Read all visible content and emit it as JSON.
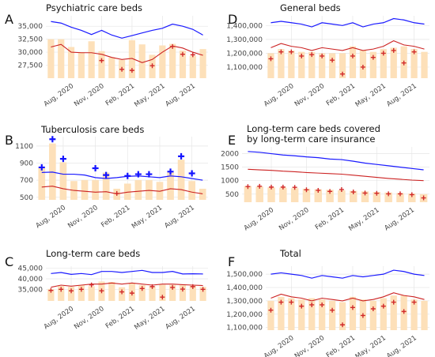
{
  "chart_data": [
    {
      "id": "A",
      "type": "bar",
      "letter": "A",
      "title": [
        "Psychiatric care beds"
      ],
      "xticks": [
        "Aug, 2020",
        "Nov, 2020",
        "Feb, 2021",
        "May, 2021",
        "Aug, 2021"
      ],
      "yticks": [
        27500,
        30000,
        32500,
        35000
      ],
      "ytick_labels": [
        "27,500",
        "30,000",
        "32,500",
        "35,000"
      ],
      "ylim": [
        25000,
        37000
      ],
      "bars": [
        32500,
        32500,
        31000,
        30000,
        32100,
        30200,
        29000,
        28500,
        32300,
        31500,
        29500,
        31300,
        31600,
        30300,
        29300,
        30600
      ],
      "blue_line": [
        35900,
        35600,
        34800,
        34200,
        33400,
        34200,
        33300,
        32700,
        33200,
        33700,
        34200,
        34600,
        35400,
        35000,
        34400,
        33300
      ],
      "red_line": [
        31000,
        31500,
        30000,
        29900,
        29900,
        29600,
        29000,
        28600,
        28800,
        28000,
        28600,
        30000,
        31200,
        30800,
        30000,
        29400
      ],
      "markers_red": [
        null,
        null,
        null,
        null,
        null,
        28400,
        null,
        26700,
        26500,
        null,
        27400,
        null,
        31100,
        29600,
        29500,
        null
      ],
      "markers_blue": []
    },
    {
      "id": "B",
      "type": "bar",
      "letter": "B",
      "title": [
        "Tuberculosis care beds"
      ],
      "xticks": [
        "Aug, 2020",
        "Nov, 2020",
        "Feb, 2021",
        "May, 2021",
        "Aug, 2021"
      ],
      "yticks": [
        500,
        700,
        900,
        1100
      ],
      "ytick_labels": [
        "500",
        "700",
        "900",
        "1100"
      ],
      "ylim": [
        470,
        1210
      ],
      "bars": [
        840,
        1130,
        910,
        690,
        700,
        700,
        790,
        600,
        660,
        700,
        700,
        680,
        790,
        940,
        690,
        600
      ],
      "blue_line": [
        790,
        795,
        770,
        770,
        760,
        730,
        720,
        730,
        745,
        750,
        740,
        730,
        750,
        740,
        720,
        700
      ],
      "red_line": [
        620,
        630,
        600,
        580,
        570,
        560,
        565,
        540,
        560,
        570,
        580,
        570,
        600,
        590,
        560,
        540
      ],
      "markers_red": [
        null,
        null,
        null,
        null,
        null,
        null,
        null,
        545,
        null,
        null,
        null,
        null,
        null,
        null,
        null,
        null
      ],
      "markers_blue": [
        850,
        1180,
        950,
        null,
        null,
        840,
        760,
        null,
        750,
        770,
        770,
        null,
        800,
        980,
        780,
        null
      ]
    },
    {
      "id": "C",
      "type": "bar",
      "letter": "C",
      "title": [
        "Long-term care beds"
      ],
      "xticks": [
        "Aug, 2020",
        "Nov, 2020",
        "Feb, 2021",
        "May, 2021",
        "Aug, 2021"
      ],
      "yticks": [
        35000,
        40000,
        45000
      ],
      "ytick_labels": [
        "35,000",
        "40,000",
        "45,000"
      ],
      "ylim": [
        29500,
        46000
      ],
      "bars": [
        35200,
        36600,
        36200,
        37000,
        36500,
        38700,
        38500,
        36000,
        38000,
        37000,
        36500,
        37200,
        37100,
        37000,
        36700,
        36200
      ],
      "blue_line": [
        42500,
        43000,
        42100,
        42500,
        42000,
        43500,
        43500,
        43000,
        43500,
        44000,
        43000,
        43000,
        43500,
        42300,
        42400,
        42300
      ],
      "red_line": [
        36000,
        37000,
        36500,
        37000,
        37500,
        37500,
        38000,
        37500,
        38000,
        37500,
        37000,
        37500,
        37500,
        37200,
        37000,
        36800
      ],
      "markers_red": [
        34500,
        35000,
        34300,
        35000,
        37100,
        34300,
        null,
        33800,
        33200,
        35400,
        36300,
        31300,
        35900,
        35100,
        36300,
        35000
      ],
      "markers_blue": []
    },
    {
      "id": "D",
      "type": "bar",
      "letter": "D",
      "title": [
        "General beds"
      ],
      "xticks": [
        "Aug, 2020",
        "Nov, 2020",
        "Feb, 2021",
        "May, 2021",
        "Aug, 2021"
      ],
      "yticks": [
        1100000,
        1200000,
        1300000,
        1400000
      ],
      "ytick_labels": [
        "1,100,000",
        "1,200,000",
        "1,300,000",
        "1,400,000"
      ],
      "ylim": [
        1020000,
        1470000
      ],
      "bars": [
        1200000,
        1230000,
        1220000,
        1210000,
        1210000,
        1200000,
        1200000,
        1200000,
        1250000,
        1220000,
        1210000,
        1230000,
        1240000,
        1250000,
        1230000,
        1210000
      ],
      "blue_line": [
        1420000,
        1430000,
        1420000,
        1410000,
        1390000,
        1420000,
        1410000,
        1400000,
        1420000,
        1390000,
        1410000,
        1420000,
        1450000,
        1440000,
        1420000,
        1410000
      ],
      "red_line": [
        1240000,
        1270000,
        1250000,
        1240000,
        1220000,
        1240000,
        1230000,
        1220000,
        1240000,
        1220000,
        1230000,
        1250000,
        1290000,
        1260000,
        1250000,
        1230000
      ],
      "markers_red": [
        1160000,
        1210000,
        1210000,
        1180000,
        1190000,
        1180000,
        1150000,
        1050000,
        1180000,
        1100000,
        1170000,
        1200000,
        1220000,
        1130000,
        1210000,
        null
      ],
      "markers_blue": []
    },
    {
      "id": "E",
      "type": "bar",
      "letter": "E",
      "title": [
        "Long-term care beds covered",
        "by long-term care insurance"
      ],
      "xticks": [
        "Aug, 2020",
        "Nov, 2020",
        "Feb, 2021",
        "May, 2021",
        "Aug, 2021"
      ],
      "yticks": [
        500,
        1000,
        1500,
        2000
      ],
      "ytick_labels": [
        "500",
        "1000",
        "1500",
        "2000"
      ],
      "ylim": [
        200,
        2250
      ],
      "bars": [
        800,
        780,
        750,
        740,
        720,
        700,
        680,
        660,
        640,
        620,
        600,
        580,
        560,
        540,
        520,
        500
      ],
      "blue_line": [
        2080,
        2050,
        2000,
        1950,
        1920,
        1880,
        1850,
        1800,
        1780,
        1720,
        1650,
        1600,
        1550,
        1500,
        1450,
        1400
      ],
      "red_line": [
        1420,
        1400,
        1380,
        1350,
        1330,
        1300,
        1280,
        1260,
        1240,
        1200,
        1160,
        1120,
        1080,
        1050,
        1020,
        1000
      ],
      "markers_red": [
        780,
        790,
        760,
        760,
        750,
        660,
        640,
        600,
        670,
        580,
        540,
        530,
        510,
        510,
        480,
        360
      ],
      "markers_blue": []
    },
    {
      "id": "F",
      "type": "bar",
      "letter": "F",
      "title": [
        "Total"
      ],
      "xticks": [
        "Aug, 2020",
        "Nov, 2020",
        "Feb, 2021",
        "May, 2021",
        "Aug, 2021"
      ],
      "yticks": [
        1100000,
        1200000,
        1300000,
        1400000,
        1500000
      ],
      "ytick_labels": [
        "1,100,000",
        "1,200,000",
        "1,300,000",
        "1,400,000",
        "1,500,000"
      ],
      "ylim": [
        1080000,
        1560000
      ],
      "bars": [
        1300000,
        1330000,
        1320000,
        1310000,
        1320000,
        1310000,
        1300000,
        1290000,
        1330000,
        1310000,
        1300000,
        1320000,
        1340000,
        1340000,
        1310000,
        1300000
      ],
      "blue_line": [
        1500000,
        1510000,
        1500000,
        1490000,
        1470000,
        1490000,
        1480000,
        1470000,
        1490000,
        1480000,
        1490000,
        1500000,
        1530000,
        1520000,
        1500000,
        1490000
      ],
      "red_line": [
        1320000,
        1350000,
        1330000,
        1320000,
        1300000,
        1320000,
        1310000,
        1300000,
        1320000,
        1300000,
        1310000,
        1330000,
        1360000,
        1340000,
        1330000,
        1310000
      ],
      "markers_red": [
        1230000,
        1290000,
        1290000,
        1260000,
        1270000,
        1270000,
        1230000,
        1120000,
        1250000,
        1190000,
        1240000,
        1260000,
        1290000,
        1220000,
        1290000,
        null
      ],
      "markers_blue": []
    }
  ]
}
